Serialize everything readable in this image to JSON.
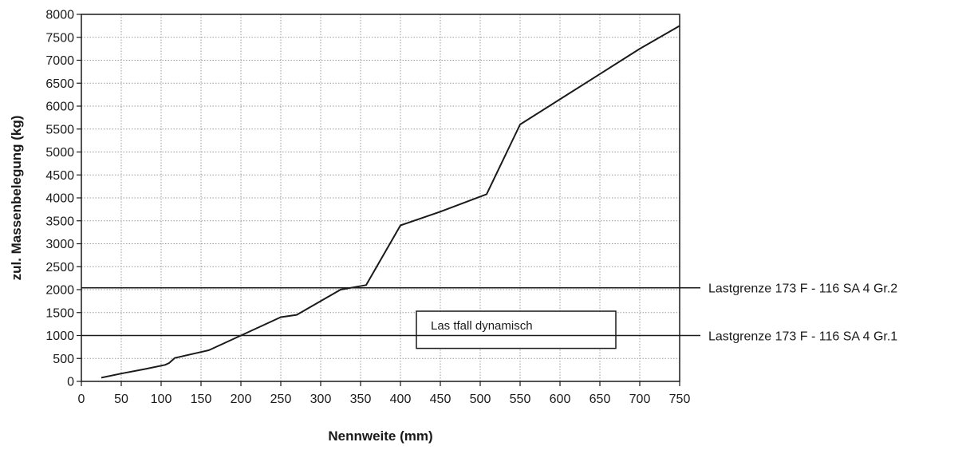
{
  "chart_data": {
    "type": "line",
    "title": "",
    "xlabel": "Nennweite (mm)",
    "ylabel": "zul. Massenbelegung (kg)",
    "xlim": [
      0,
      750
    ],
    "ylim": [
      0,
      8000
    ],
    "x_ticks": [
      0,
      50,
      100,
      150,
      200,
      250,
      300,
      350,
      400,
      450,
      500,
      550,
      600,
      650,
      700,
      750
    ],
    "y_ticks": [
      0,
      500,
      1000,
      1500,
      2000,
      2500,
      3000,
      3500,
      4000,
      4500,
      5000,
      5500,
      6000,
      6500,
      7000,
      7500,
      8000
    ],
    "grid": true,
    "series": [
      {
        "x": [
          25,
          50,
          80,
          105,
          110,
          117,
          160,
          200,
          250,
          270,
          325,
          357,
          400,
          450,
          508,
          550,
          600,
          650,
          700,
          750
        ],
        "y": [
          80,
          170,
          270,
          360,
          400,
          510,
          680,
          1000,
          1400,
          1450,
          2000,
          2100,
          3400,
          3700,
          4080,
          5600,
          6150,
          6700,
          7250,
          7750
        ]
      }
    ],
    "reference_lines": [
      {
        "y": 2040,
        "label": "Lastgrenze 173 F - 116 SA 4 Gr.2"
      },
      {
        "y": 1000,
        "label": "Lastgrenze 173 F - 116 SA 4 Gr.1"
      }
    ],
    "annotation": {
      "text": "Las tfall dynamisch",
      "x_range": [
        420,
        670
      ],
      "y_range": [
        720,
        1530
      ]
    }
  }
}
